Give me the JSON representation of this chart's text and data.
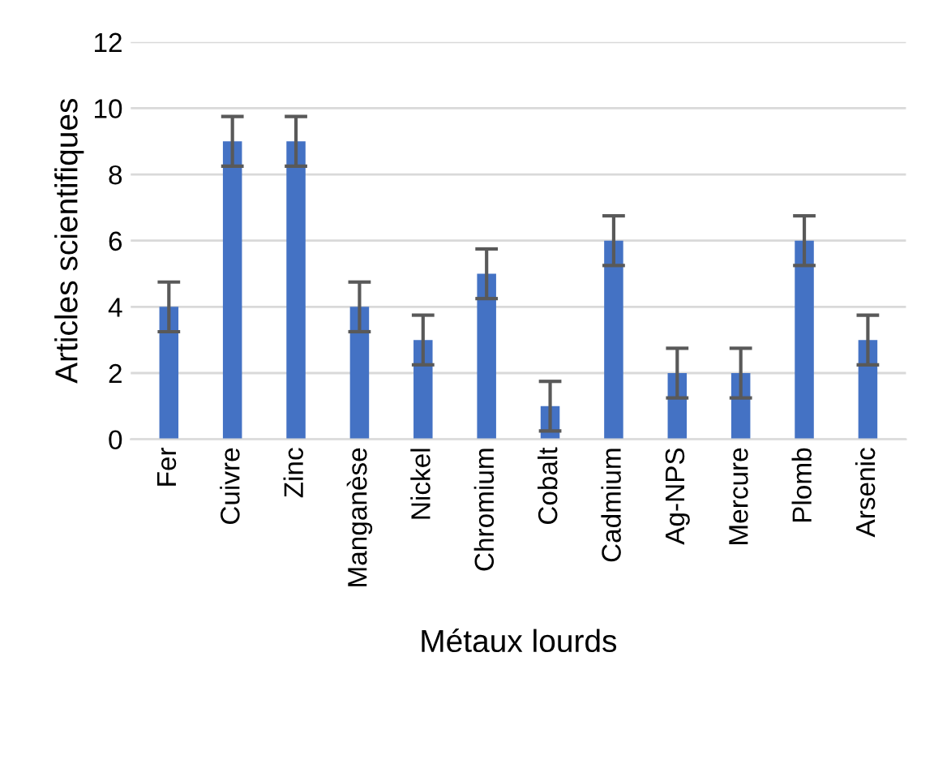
{
  "chart_data": {
    "type": "bar",
    "xlabel": "Métaux lourds",
    "ylabel": "Articles scientifiques",
    "categories": [
      "Fer",
      "Cuivre",
      "Zinc",
      "Manganèse",
      "Nickel",
      "Chromium",
      "Cobalt",
      "Cadmium",
      "Ag-NPS",
      "Mercure",
      "Plomb",
      "Arsenic"
    ],
    "values": [
      4,
      9,
      9,
      4,
      3,
      5,
      1,
      6,
      2,
      2,
      6,
      3
    ],
    "errors": [
      0.75,
      0.75,
      0.75,
      0.75,
      0.75,
      0.75,
      0.75,
      0.75,
      0.75,
      0.75,
      0.75,
      0.75
    ],
    "color": "#4472c4",
    "ylim": [
      0,
      12
    ],
    "yticks": [
      0,
      2,
      4,
      6,
      8,
      10,
      12
    ],
    "grid": "y"
  }
}
